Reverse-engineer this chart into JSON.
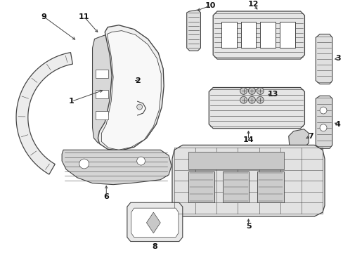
{
  "background_color": "#ffffff",
  "fig_width": 4.89,
  "fig_height": 3.6,
  "dpi": 100,
  "line_color": "#444444",
  "text_color": "#111111",
  "font_size": 8
}
